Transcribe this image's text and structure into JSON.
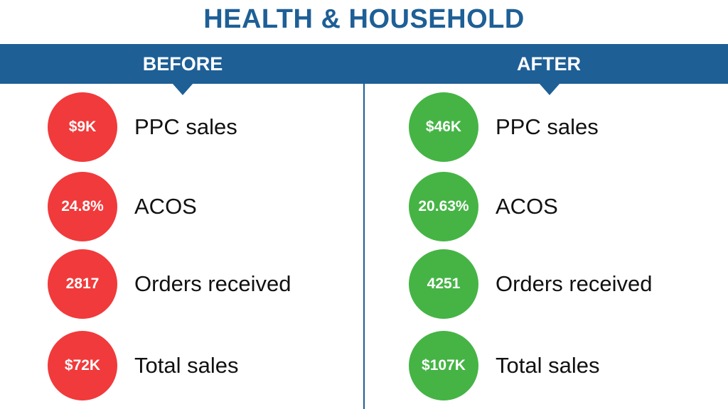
{
  "title": "HEALTH & HOUSEHOLD",
  "colors": {
    "brand_blue": "#1e5f96",
    "before_red": "#f13a3b",
    "after_green": "#45b445"
  },
  "before": {
    "label": "BEFORE",
    "metrics": [
      {
        "value": "$9K",
        "label": "PPC sales"
      },
      {
        "value": "24.8%",
        "label": "ACOS"
      },
      {
        "value": "2817",
        "label": "Orders received"
      },
      {
        "value": "$72K",
        "label": "Total sales"
      }
    ]
  },
  "after": {
    "label": "AFTER",
    "metrics": [
      {
        "value": "$46K",
        "label": "PPC sales"
      },
      {
        "value": "20.63%",
        "label": "ACOS"
      },
      {
        "value": "4251",
        "label": "Orders received"
      },
      {
        "value": "$107K",
        "label": "Total sales"
      }
    ]
  }
}
